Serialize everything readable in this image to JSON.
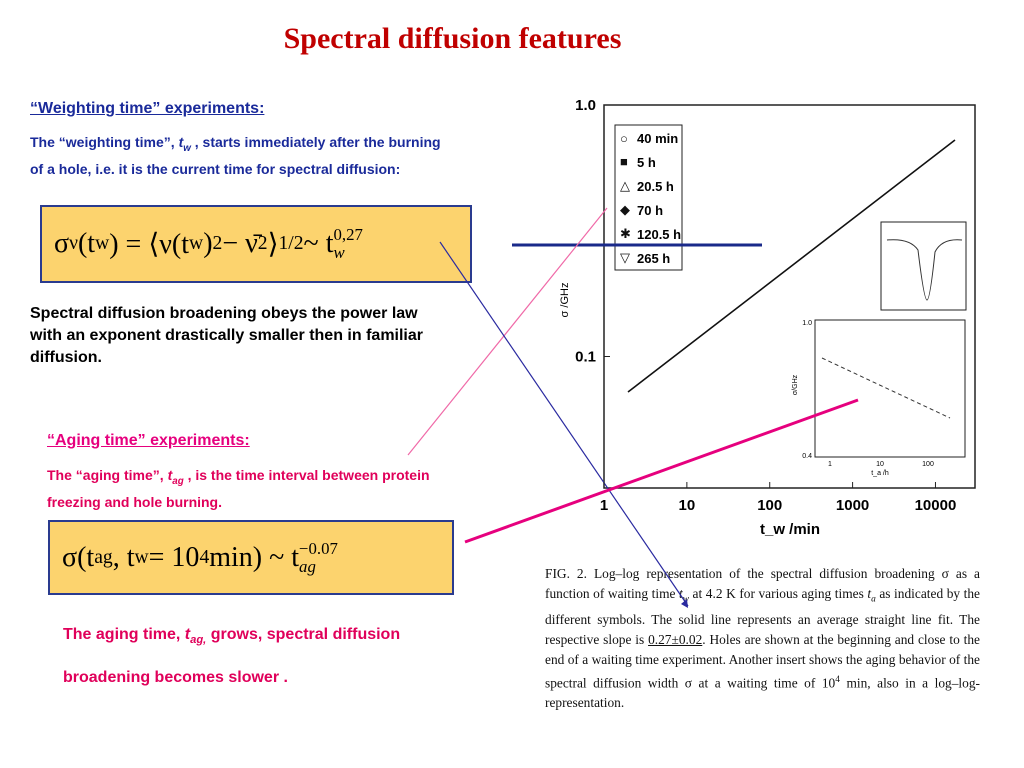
{
  "title": "Spectral diffusion features",
  "weighting": {
    "heading": "“Weighting time” experiments:",
    "paragraph": [
      {
        "text": "The “weighting time”, "
      },
      {
        "text": "t",
        "sub": "w",
        "italic": true
      },
      {
        "text": " , starts immediately after the burning of a hole, i.e. it is the current time for spectral diffusion:"
      }
    ],
    "formula": [
      {
        "text": "σ",
        "sub": "ν"
      },
      {
        "text": "(t",
        "sub": "w"
      },
      {
        "text": ") = ⟨ν(t",
        "sub": "w"
      },
      {
        "text": ")",
        "sup": "2"
      },
      {
        "text": " − ν̄",
        "sup": "2"
      },
      {
        "text": "⟩",
        "sup": "1/2"
      },
      {
        "text": " ~ t",
        "sub": "w",
        "sup": "0,27"
      }
    ],
    "conclusion": "Spectral diffusion broadening obeys the power law with an exponent  drastically smaller then in familiar diffusion."
  },
  "aging": {
    "heading": "“Aging time” experiments:",
    "paragraph": [
      {
        "text": "The “aging time”, "
      },
      {
        "text": "t",
        "sub": "ag",
        "italic": true
      },
      {
        "text": " , is the time interval between protein freezing and hole burning."
      }
    ],
    "formula": [
      {
        "text": "σ(t",
        "sub": "ag"
      },
      {
        "text": ", t",
        "sub": "w"
      },
      {
        "text": " = 10",
        "sup": "4"
      },
      {
        "text": " min) ~ t",
        "sub": "ag",
        "sup": "−0.07"
      }
    ],
    "conclusion": [
      {
        "text": "The aging time, "
      },
      {
        "text": "t",
        "sub": "ag,",
        "italic": true
      },
      {
        "text": " grows, spectral diffusion broadening becomes slower ."
      }
    ]
  },
  "figure": {
    "xlabel": "t_w /min",
    "ylabel": "σ /GHz",
    "xlim": [
      1,
      30000
    ],
    "ylim": [
      0.03,
      1
    ],
    "xticks": [
      1,
      10,
      100,
      1000,
      10000
    ],
    "yticks": [
      {
        "value": 1,
        "label": "1.0"
      },
      0.1
    ],
    "legend": [
      "40 min",
      "5 h",
      "20.5 h",
      "70 h",
      "120.5 h",
      "265 h"
    ],
    "inset": {
      "ylabel": "σ/GHz",
      "xlabel": "t_a /h",
      "yticks": [
        "1.0",
        "0.4"
      ],
      "xticks": [
        "1",
        "10",
        "100"
      ]
    },
    "caption": [
      {
        "text": "FIG. 2. Log–log representation of the spectral diffusion broadening σ as a function of waiting time "
      },
      {
        "text": "t",
        "sub": "w",
        "italic": true
      },
      {
        "text": " at 4.2 K for various aging times "
      },
      {
        "text": "t",
        "sub": "a",
        "italic": true
      },
      {
        "text": " as indicated by the different symbols. The solid line represents an average straight line fit. The respective slope is "
      },
      {
        "text": "0.27±0.02",
        "underline": true
      },
      {
        "text": ". Holes are shown at the beginning and close to the end of a waiting time experiment. Another insert shows the aging behavior of the spectral diffusion width σ at a waiting time of 10"
      },
      {
        "text": "",
        "sup": "4"
      },
      {
        "text": " min, also in a log–log-representation."
      }
    ]
  }
}
